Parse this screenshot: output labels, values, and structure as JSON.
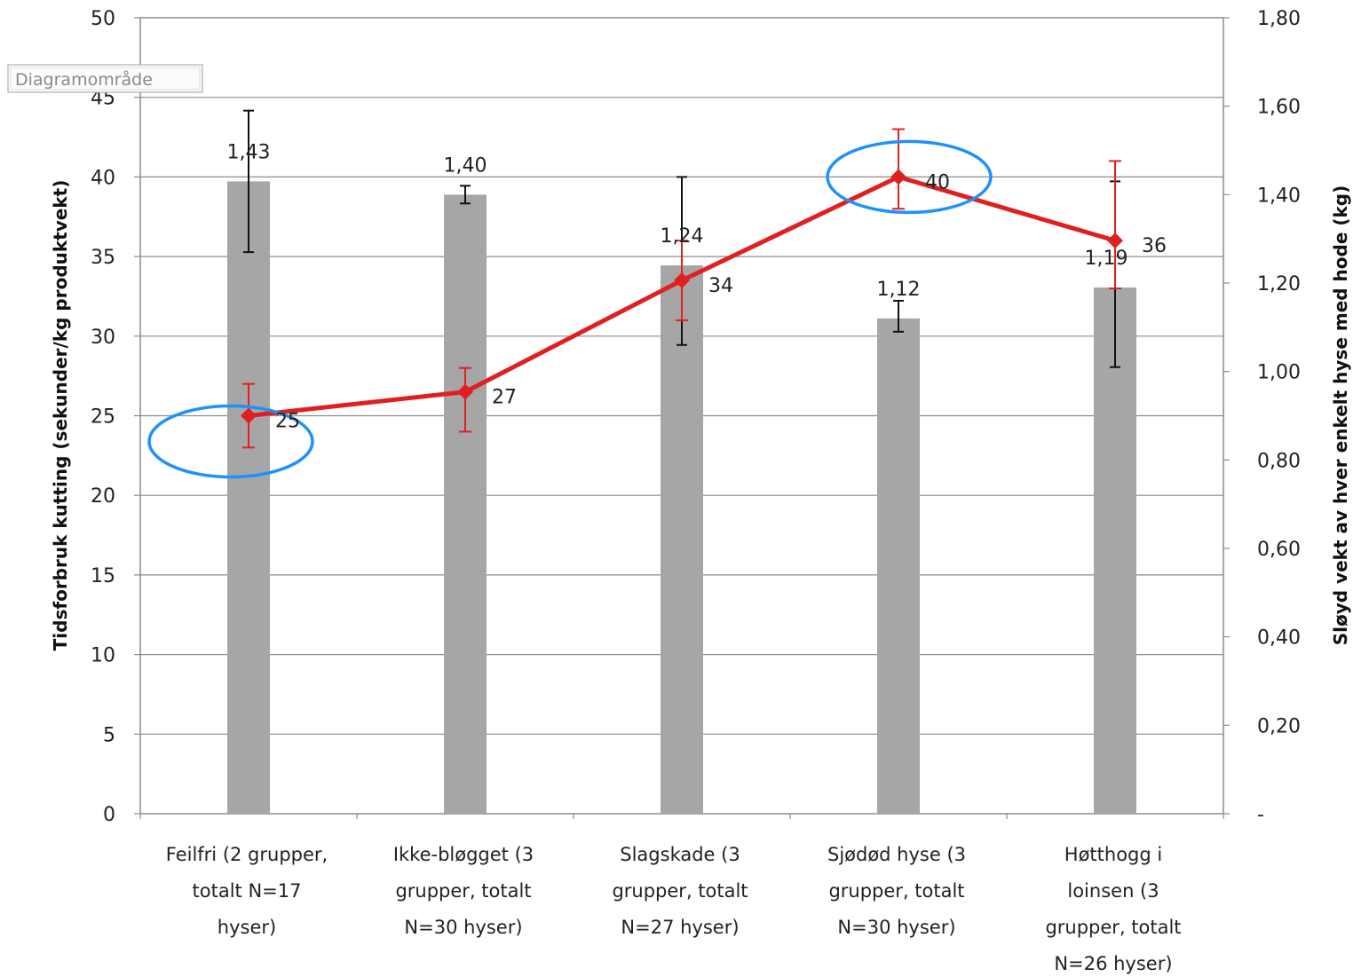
{
  "tooltip": "Diagramområde",
  "chart_data": {
    "type": "bar+line",
    "categories": [
      [
        "Feilfri (2 grupper,",
        "totalt N=17",
        "hyser)"
      ],
      [
        "Ikke-bløgget (3",
        "grupper, totalt",
        "N=30 hyser)"
      ],
      [
        "Slagskade (3",
        "grupper, totalt",
        "N=27 hyser)"
      ],
      [
        "Sjødød hyse (3",
        "grupper, totalt",
        "N=30 hyser)"
      ],
      [
        "Høtthogg i",
        "loinsen (3",
        "grupper, totalt",
        "N=26 hyser)"
      ]
    ],
    "ylabel_left": "Tidsforbruk kutting (sekunder/kg produktvekt)",
    "ylabel_right": "Sløyd vekt av hver enkelt hyse med hode (kg)",
    "y_left": {
      "min": 0,
      "max": 50,
      "step": 5,
      "ticks": [
        "0",
        "5",
        "10",
        "15",
        "20",
        "25",
        "30",
        "35",
        "40",
        "45",
        "50"
      ]
    },
    "y_right": {
      "min": 0,
      "max": 1.8,
      "step": 0.2,
      "ticks": [
        "-",
        "0,20",
        "0,40",
        "0,60",
        "0,80",
        "1,00",
        "1,20",
        "1,40",
        "1,60",
        "1,80"
      ]
    },
    "grid": true,
    "bars": {
      "axis": "right",
      "color": "#a6a6a6",
      "values": [
        1.43,
        1.4,
        1.24,
        1.12,
        1.19
      ],
      "labels": [
        "1,43",
        "1,40",
        "1,24",
        "1,12",
        "1,19"
      ],
      "err_low": [
        1.27,
        1.38,
        1.06,
        1.09,
        1.01
      ],
      "err_high": [
        1.59,
        1.42,
        1.44,
        1.16,
        1.43
      ]
    },
    "line": {
      "axis": "left",
      "color": "#e02020",
      "values": [
        25,
        26.5,
        33.5,
        40,
        36
      ],
      "labels": [
        "25",
        "27",
        "34",
        "40",
        "36"
      ],
      "err_low": [
        23,
        24,
        31,
        38,
        33
      ],
      "err_high": [
        27,
        28,
        36,
        43,
        41
      ]
    },
    "highlights": [
      {
        "category_index": 0,
        "color": "#1e90ff"
      },
      {
        "category_index": 3,
        "color": "#1e90ff"
      }
    ]
  }
}
